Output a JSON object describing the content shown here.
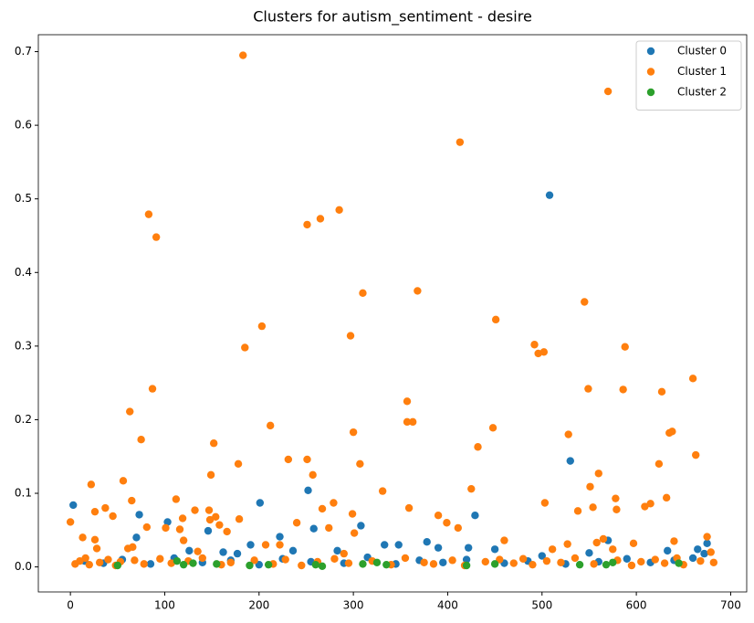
{
  "chart_data": {
    "type": "scatter",
    "title": "Clusters for autism_sentiment - desire",
    "xlim": [
      -34,
      717
    ],
    "xticks": [
      0,
      100,
      200,
      300,
      400,
      500,
      600,
      700
    ],
    "ylim": [
      -0.034,
      0.723
    ],
    "yticks": [
      {
        "value": 0,
        "label": "0.0"
      },
      0.1,
      0.2,
      0.3,
      0.4,
      0.5,
      0.6,
      0.7
    ],
    "legend": "upper right",
    "series": [
      {
        "name": "Cluster 0",
        "color": "#1f77b4",
        "x": [
          3,
          70,
          73,
          103,
          126,
          146,
          162,
          177,
          191,
          201,
          222,
          236,
          252,
          258,
          283,
          308,
          333,
          348,
          378,
          390,
          422,
          429,
          450,
          508,
          530,
          550,
          570,
          633,
          665,
          675,
          15,
          35,
          55,
          85,
          110,
          140,
          170,
          200,
          225,
          255,
          290,
          315,
          345,
          370,
          395,
          420,
          460,
          485,
          500,
          525,
          560,
          590,
          615,
          640,
          660,
          672
        ],
        "values": [
          0.084,
          0.04,
          0.071,
          0.061,
          0.022,
          0.049,
          0.02,
          0.018,
          0.03,
          0.087,
          0.041,
          0.022,
          0.104,
          0.052,
          0.022,
          0.056,
          0.03,
          0.03,
          0.034,
          0.026,
          0.026,
          0.07,
          0.024,
          0.505,
          0.144,
          0.019,
          0.036,
          0.022,
          0.024,
          0.032,
          0.008,
          0.005,
          0.01,
          0.004,
          0.012,
          0.006,
          0.009,
          0.003,
          0.011,
          0.007,
          0.005,
          0.013,
          0.004,
          0.009,
          0.006,
          0.01,
          0.005,
          0.008,
          0.015,
          0.004,
          0.007,
          0.011,
          0.006,
          0.009,
          0.012,
          0.018
        ]
      },
      {
        "name": "Cluster 1",
        "color": "#ff7f0e",
        "x": [
          0,
          13,
          22,
          26,
          26,
          28,
          37,
          45,
          56,
          61,
          63,
          65,
          66,
          75,
          81,
          83,
          87,
          91,
          101,
          112,
          116,
          119,
          120,
          132,
          135,
          147,
          148,
          149,
          152,
          154,
          158,
          166,
          178,
          179,
          183,
          185,
          203,
          207,
          212,
          222,
          231,
          240,
          251,
          251,
          257,
          265,
          267,
          274,
          279,
          285,
          290,
          297,
          300,
          301,
          299,
          307,
          310,
          331,
          357,
          357,
          359,
          363,
          368,
          390,
          399,
          411,
          413,
          425,
          432,
          448,
          451,
          460,
          492,
          496,
          502,
          503,
          511,
          527,
          528,
          538,
          545,
          549,
          551,
          554,
          558,
          560,
          565,
          570,
          575,
          578,
          579,
          586,
          588,
          597,
          609,
          615,
          624,
          627,
          632,
          635,
          638,
          640,
          643,
          660,
          663,
          675,
          679,
          5,
          10,
          16,
          20,
          31,
          40,
          48,
          53,
          68,
          78,
          95,
          107,
          125,
          140,
          160,
          170,
          195,
          215,
          228,
          245,
          262,
          280,
          295,
          320,
          340,
          355,
          375,
          385,
          405,
          418,
          440,
          455,
          470,
          480,
          490,
          505,
          520,
          535,
          555,
          580,
          595,
          605,
          620,
          630,
          650,
          668,
          682
        ],
        "values": [
          0.061,
          0.04,
          0.112,
          0.075,
          0.037,
          0.025,
          0.08,
          0.069,
          0.117,
          0.025,
          0.211,
          0.09,
          0.027,
          0.173,
          0.054,
          0.479,
          0.242,
          0.448,
          0.053,
          0.092,
          0.051,
          0.066,
          0.036,
          0.077,
          0.021,
          0.077,
          0.064,
          0.125,
          0.168,
          0.068,
          0.057,
          0.048,
          0.14,
          0.065,
          0.695,
          0.298,
          0.327,
          0.03,
          0.192,
          0.03,
          0.146,
          0.06,
          0.465,
          0.146,
          0.125,
          0.473,
          0.079,
          0.053,
          0.087,
          0.485,
          0.018,
          0.314,
          0.183,
          0.046,
          0.072,
          0.14,
          0.372,
          0.103,
          0.225,
          0.197,
          0.08,
          0.197,
          0.375,
          0.07,
          0.06,
          0.053,
          0.577,
          0.106,
          0.163,
          0.189,
          0.336,
          0.036,
          0.302,
          0.29,
          0.292,
          0.087,
          0.024,
          0.031,
          0.18,
          0.076,
          0.36,
          0.242,
          0.109,
          0.081,
          0.033,
          0.127,
          0.038,
          0.646,
          0.024,
          0.093,
          0.078,
          0.241,
          0.299,
          0.032,
          0.082,
          0.086,
          0.14,
          0.238,
          0.094,
          0.182,
          0.184,
          0.035,
          0.012,
          0.256,
          0.152,
          0.041,
          0.02,
          0.004,
          0.008,
          0.012,
          0.003,
          0.006,
          0.01,
          0.002,
          0.007,
          0.009,
          0.004,
          0.011,
          0.005,
          0.008,
          0.012,
          0.003,
          0.006,
          0.009,
          0.004,
          0.01,
          0.002,
          0.007,
          0.011,
          0.005,
          0.008,
          0.003,
          0.012,
          0.006,
          0.004,
          0.009,
          0.002,
          0.007,
          0.01,
          0.005,
          0.011,
          0.003,
          0.008,
          0.006,
          0.012,
          0.004,
          0.009,
          0.002,
          0.007,
          0.01,
          0.005,
          0.003,
          0.008,
          0.006
        ]
      },
      {
        "name": "Cluster 2",
        "color": "#2ca02c",
        "x": [
          50,
          113,
          120,
          130,
          155,
          190,
          210,
          260,
          267,
          310,
          325,
          335,
          420,
          450,
          540,
          568,
          575,
          645
        ],
        "values": [
          0.002,
          0.008,
          0.003,
          0.005,
          0.004,
          0.002,
          0.003,
          0.003,
          0.001,
          0.004,
          0.006,
          0.003,
          0.002,
          0.004,
          0.003,
          0.003,
          0.006,
          0.005
        ]
      }
    ]
  }
}
